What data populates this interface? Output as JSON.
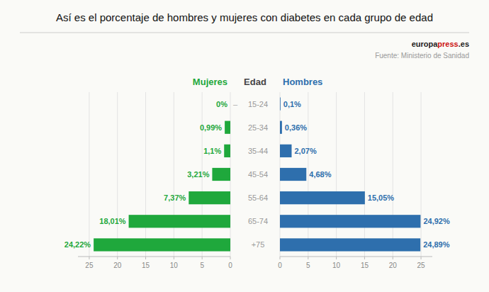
{
  "chart_data": {
    "type": "bar",
    "orientation": "horizontal",
    "title": "Así es el porcentaje de hombres y mujeres con diabetes en cada grupo de edad",
    "ylabel": "Edad",
    "categories": [
      "15-24",
      "25-34",
      "35-44",
      "45-54",
      "55-64",
      "65-74",
      "+75"
    ],
    "series": [
      {
        "name": "Mujeres",
        "color": "#1fa83c",
        "values": [
          0.0,
          0.99,
          1.1,
          3.21,
          7.37,
          18.01,
          24.22
        ],
        "value_labels": [
          "0%",
          "0,99%",
          "1,1%",
          "3,21%",
          "7,37%",
          "18,01%",
          "24,22%"
        ]
      },
      {
        "name": "Hombres",
        "color": "#2e6fad",
        "values": [
          0.1,
          0.36,
          2.07,
          4.68,
          15.05,
          24.92,
          24.89
        ],
        "value_labels": [
          "0,1%",
          "0,36%",
          "2,07%",
          "4,68%",
          "15,05%",
          "24,92%",
          "24,89%"
        ]
      }
    ],
    "xlim": [
      0,
      27
    ],
    "xticks": [
      0,
      5,
      10,
      15,
      20,
      25
    ],
    "grid": true,
    "data_labels": true,
    "annotations": [
      {
        "text": "–",
        "color": "#aaaaaa"
      },
      {
        "text": "europa",
        "color": "#222222"
      },
      {
        "text": "press",
        "color": "#cc1111"
      },
      {
        "text": ".es",
        "color": "#222222"
      },
      {
        "text": "Fuente: Ministerio de Sanidad",
        "color": "#999999"
      }
    ]
  }
}
